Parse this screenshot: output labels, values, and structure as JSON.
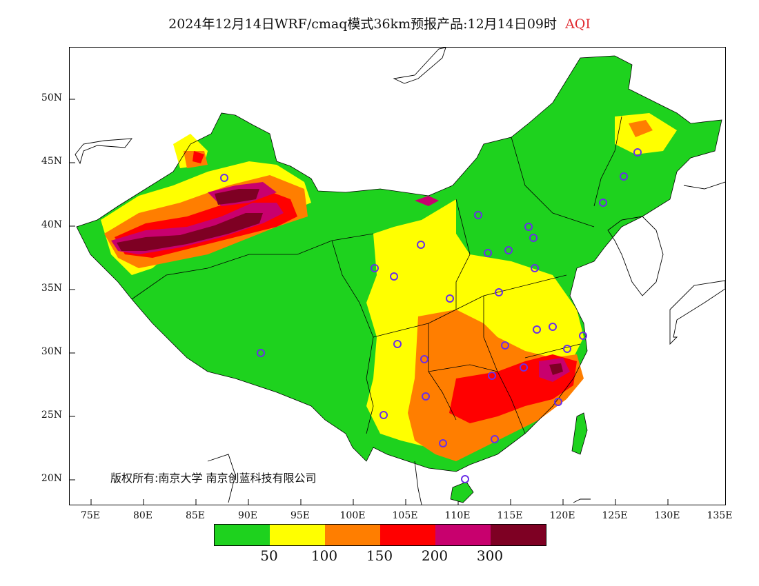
{
  "title": {
    "main": "2024年12月14日WRF/cmaq模式36km预报产品:12月14日09时",
    "variable": "AQI",
    "variable_color": "#e0282e"
  },
  "axes": {
    "y_labels": [
      "50N",
      "45N",
      "40N",
      "35N",
      "30N",
      "25N",
      "20N"
    ],
    "x_labels": [
      "75E",
      "80E",
      "85E",
      "90E",
      "95E",
      "100E",
      "105E",
      "110E",
      "115E",
      "120E",
      "125E",
      "130E",
      "135E"
    ]
  },
  "credit": {
    "text": "版权所有:南京大学 南京创蓝科技有限公司"
  },
  "legend": {
    "colors": [
      "#1ed21e",
      "#ffff00",
      "#ff7e00",
      "#ff0000",
      "#c8006e",
      "#7e0023"
    ],
    "labels": [
      "50",
      "100",
      "150",
      "200",
      "300"
    ]
  },
  "map": {
    "colors": {
      "good": "#1ed21e",
      "moderate": "#ffff00",
      "usg": "#ff7e00",
      "unhealthy": "#ff0000",
      "very_unhealthy": "#c8006e",
      "hazardous": "#7e0023",
      "marker": "#6a2ee8"
    }
  }
}
